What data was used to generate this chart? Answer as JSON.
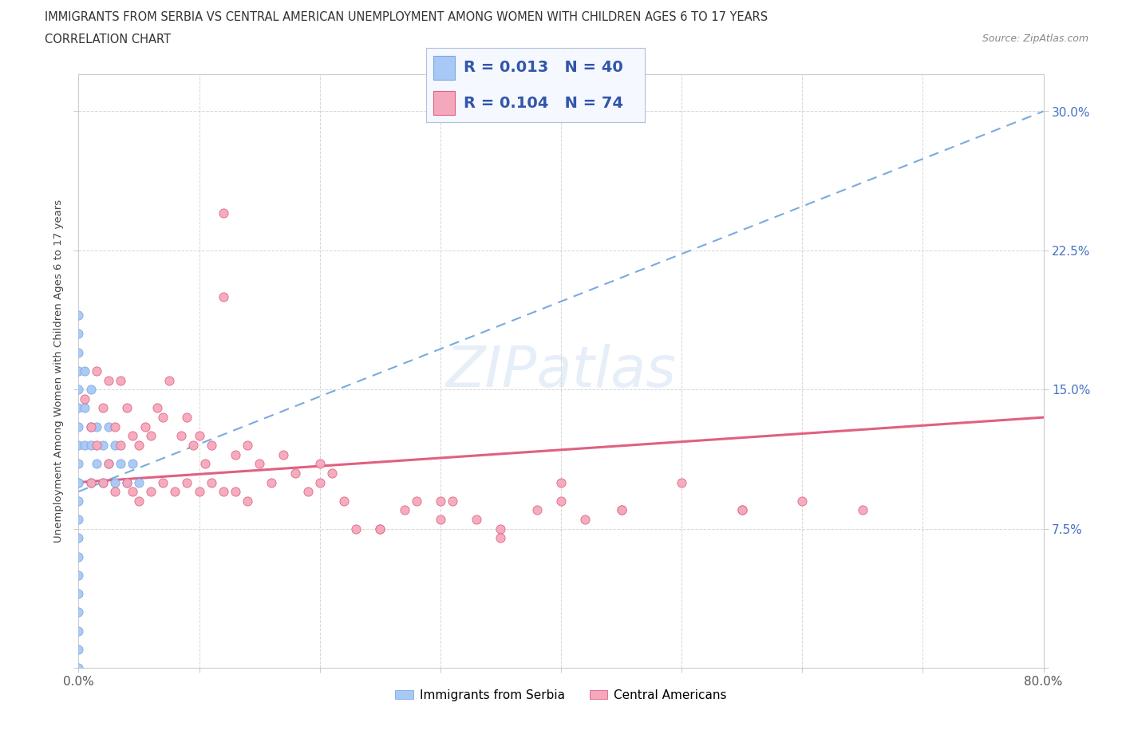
{
  "title_line1": "IMMIGRANTS FROM SERBIA VS CENTRAL AMERICAN UNEMPLOYMENT AMONG WOMEN WITH CHILDREN AGES 6 TO 17 YEARS",
  "title_line2": "CORRELATION CHART",
  "source_text": "Source: ZipAtlas.com",
  "ylabel": "Unemployment Among Women with Children Ages 6 to 17 years",
  "xlim": [
    0.0,
    0.8
  ],
  "ylim": [
    0.0,
    0.32
  ],
  "serbia_color": "#a8c8f5",
  "serbia_edge_color": "#7aaae0",
  "central_color": "#f5a8bc",
  "central_edge_color": "#e06080",
  "serbia_trend_color": "#7aaae0",
  "central_trend_color": "#e06080",
  "serbia_R": 0.013,
  "serbia_N": 40,
  "central_R": 0.104,
  "central_N": 74,
  "ytick_color": "#4472c4",
  "bg_color": "#ffffff",
  "grid_color": "#cccccc",
  "watermark_color": "#c8daf0",
  "serbia_points_x": [
    0.0,
    0.0,
    0.0,
    0.0,
    0.0,
    0.0,
    0.0,
    0.0,
    0.0,
    0.0,
    0.0,
    0.0,
    0.0,
    0.0,
    0.0,
    0.0,
    0.0,
    0.0,
    0.0,
    0.0,
    0.005,
    0.005,
    0.005,
    0.01,
    0.01,
    0.01,
    0.01,
    0.015,
    0.015,
    0.02,
    0.02,
    0.025,
    0.025,
    0.03,
    0.03,
    0.035,
    0.04,
    0.045,
    0.05,
    0.0
  ],
  "serbia_points_y": [
    0.0,
    0.02,
    0.04,
    0.06,
    0.08,
    0.1,
    0.12,
    0.13,
    0.14,
    0.15,
    0.16,
    0.17,
    0.18,
    0.19,
    0.09,
    0.07,
    0.05,
    0.03,
    0.11,
    0.1,
    0.12,
    0.14,
    0.16,
    0.1,
    0.12,
    0.13,
    0.15,
    0.11,
    0.13,
    0.1,
    0.12,
    0.11,
    0.13,
    0.1,
    0.12,
    0.11,
    0.1,
    0.11,
    0.1,
    0.01
  ],
  "central_points_x": [
    0.005,
    0.01,
    0.01,
    0.015,
    0.015,
    0.02,
    0.02,
    0.025,
    0.025,
    0.03,
    0.03,
    0.035,
    0.035,
    0.04,
    0.04,
    0.045,
    0.045,
    0.05,
    0.05,
    0.055,
    0.06,
    0.06,
    0.065,
    0.07,
    0.07,
    0.075,
    0.08,
    0.085,
    0.09,
    0.09,
    0.095,
    0.1,
    0.1,
    0.105,
    0.11,
    0.11,
    0.12,
    0.12,
    0.13,
    0.13,
    0.14,
    0.14,
    0.15,
    0.16,
    0.17,
    0.18,
    0.19,
    0.2,
    0.21,
    0.22,
    0.23,
    0.25,
    0.27,
    0.28,
    0.3,
    0.31,
    0.33,
    0.35,
    0.12,
    0.38,
    0.4,
    0.42,
    0.45,
    0.5,
    0.55,
    0.6,
    0.2,
    0.25,
    0.3,
    0.35,
    0.4,
    0.45,
    0.55,
    0.65
  ],
  "central_points_y": [
    0.145,
    0.1,
    0.13,
    0.12,
    0.16,
    0.1,
    0.14,
    0.11,
    0.155,
    0.095,
    0.13,
    0.12,
    0.155,
    0.1,
    0.14,
    0.095,
    0.125,
    0.09,
    0.12,
    0.13,
    0.095,
    0.125,
    0.14,
    0.1,
    0.135,
    0.155,
    0.095,
    0.125,
    0.1,
    0.135,
    0.12,
    0.095,
    0.125,
    0.11,
    0.1,
    0.12,
    0.095,
    0.2,
    0.095,
    0.115,
    0.09,
    0.12,
    0.11,
    0.1,
    0.115,
    0.105,
    0.095,
    0.1,
    0.105,
    0.09,
    0.075,
    0.075,
    0.085,
    0.09,
    0.08,
    0.09,
    0.08,
    0.075,
    0.245,
    0.085,
    0.09,
    0.08,
    0.085,
    0.1,
    0.085,
    0.09,
    0.11,
    0.075,
    0.09,
    0.07,
    0.1,
    0.085,
    0.085,
    0.085
  ]
}
